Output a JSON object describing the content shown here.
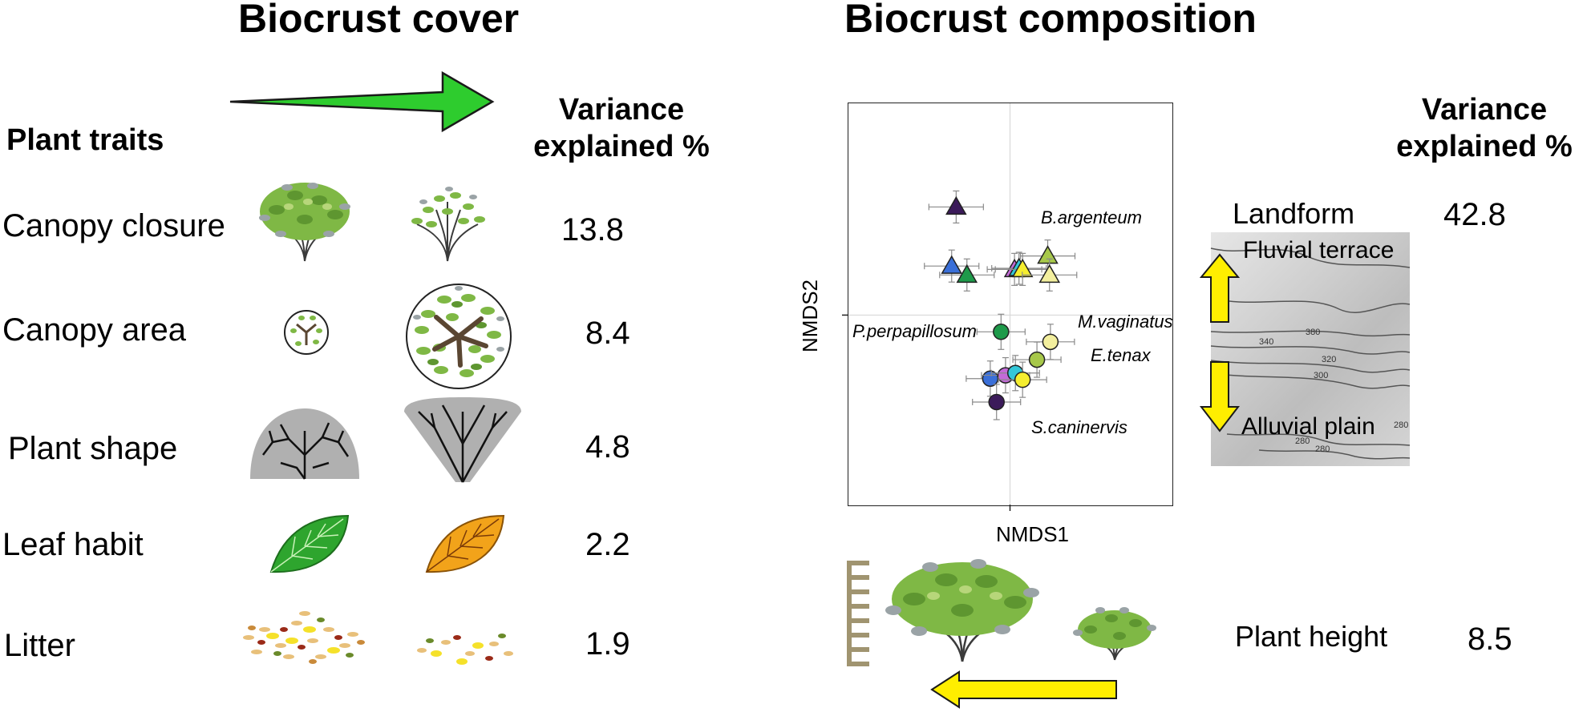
{
  "left_panel": {
    "title": "Biocrust cover",
    "traits_header": "Plant traits",
    "variance_header_line1": "Variance",
    "variance_header_line2": "explained %",
    "traits": [
      {
        "label": "Canopy closure",
        "value": "13.8"
      },
      {
        "label": "Canopy area",
        "value": "8.4"
      },
      {
        "label": "Plant shape",
        "value": "4.8"
      },
      {
        "label": "Leaf habit",
        "value": "2.2"
      },
      {
        "label": "Litter",
        "value": "1.9"
      }
    ],
    "arrow_color": "#2ecc2e"
  },
  "right_panel": {
    "title": "Biocrust composition",
    "variance_header_line1": "Variance",
    "variance_header_line2": "explained %",
    "landform": {
      "label": "Landform",
      "value": "42.8",
      "top_label": "Fluvial terrace",
      "bottom_label": "Alluvial plain",
      "contour_labels": [
        "380",
        "340",
        "320",
        "300",
        "280",
        "280",
        "280"
      ]
    },
    "plant_height": {
      "label": "Plant height",
      "value": "8.5"
    },
    "arrow_color": "#ffee00"
  },
  "nmds": {
    "x_label": "NMDS1",
    "y_label": "NMDS2",
    "species": [
      {
        "name": "B.argenteum"
      },
      {
        "name": "P.perpapillosum"
      },
      {
        "name": "M.vaginatus"
      },
      {
        "name": "E.tenax"
      },
      {
        "name": "S.caninervis"
      }
    ],
    "triangles": [
      {
        "x": -0.6,
        "y": 0.97,
        "color": "#3b1a5a"
      },
      {
        "x": -0.65,
        "y": 0.44,
        "color": "#3a6fd8"
      },
      {
        "x": -0.48,
        "y": 0.36,
        "color": "#1e9a4a"
      },
      {
        "x": 0.05,
        "y": 0.41,
        "color": "#c36ad8"
      },
      {
        "x": 0.1,
        "y": 0.42,
        "color": "#33c7d8"
      },
      {
        "x": 0.14,
        "y": 0.41,
        "color": "#f5ee30"
      },
      {
        "x": 0.42,
        "y": 0.53,
        "color": "#a7c84a"
      },
      {
        "x": 0.44,
        "y": 0.36,
        "color": "#f3ef9e"
      }
    ],
    "circles": [
      {
        "x": -0.1,
        "y": -0.15,
        "color": "#1e9a4a"
      },
      {
        "x": 0.3,
        "y": -0.4,
        "color": "#a7c84a"
      },
      {
        "x": 0.45,
        "y": -0.24,
        "color": "#f3ef9e"
      },
      {
        "x": -0.22,
        "y": -0.57,
        "color": "#3a6fd8"
      },
      {
        "x": -0.05,
        "y": -0.54,
        "color": "#c36ad8"
      },
      {
        "x": 0.06,
        "y": -0.52,
        "color": "#33c7d8"
      },
      {
        "x": 0.14,
        "y": -0.58,
        "color": "#f5ee30"
      },
      {
        "x": -0.15,
        "y": -0.78,
        "color": "#3b1a5a"
      }
    ],
    "xlim": [
      -1.8,
      1.8
    ],
    "ylim": [
      -1.7,
      1.9
    ]
  }
}
